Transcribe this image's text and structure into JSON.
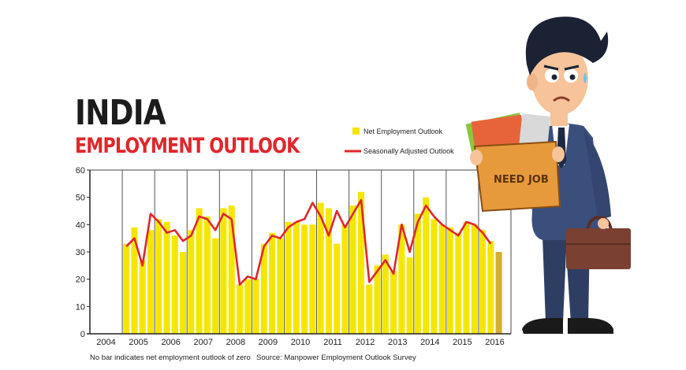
{
  "title": "INDIA",
  "subtitle": "EMPLOYMENT OUTLOOK",
  "footnote": "No bar indicates net employment outlook of zero",
  "source": "Source: Manpower Employment Outlook Survey",
  "illustration": {
    "box_label": "NEED JOB"
  },
  "colors": {
    "bar": "#f5e600",
    "bar_last": "#d4ae2f",
    "line": "#e0262b",
    "title": "#1c1c1c",
    "subtitle": "#e0262b"
  },
  "chart_data": {
    "type": "bar",
    "ylim": [
      0,
      60
    ],
    "yticks": [
      0,
      10,
      20,
      30,
      40,
      50,
      60
    ],
    "xlim": [
      2004,
      2017
    ],
    "xticks": [
      "2004",
      "2005",
      "2006",
      "2007",
      "2008",
      "2009",
      "2010",
      "2011",
      "2012",
      "2013",
      "2014",
      "2015",
      "2016"
    ],
    "grid": "vertical lines at year boundaries",
    "legend_position": "top-right",
    "series": [
      {
        "name": "Net Employment Outlook",
        "kind": "bar",
        "x": [
          2005.0,
          2005.25,
          2005.5,
          2005.75,
          2006.0,
          2006.25,
          2006.5,
          2006.75,
          2007.0,
          2007.25,
          2007.5,
          2007.75,
          2008.0,
          2008.25,
          2008.5,
          2008.75,
          2009.0,
          2009.25,
          2009.5,
          2009.75,
          2010.0,
          2010.25,
          2010.5,
          2010.75,
          2011.0,
          2011.25,
          2011.5,
          2011.75,
          2012.0,
          2012.25,
          2012.5,
          2012.75,
          2013.0,
          2013.25,
          2013.5,
          2013.75,
          2014.0,
          2014.25,
          2014.5,
          2014.75,
          2015.0,
          2015.25,
          2015.5,
          2015.75,
          2016.0,
          2016.25,
          2016.5
        ],
        "values": [
          33,
          39,
          27,
          38,
          42,
          41,
          36,
          30,
          38,
          46,
          43,
          35,
          46,
          47,
          18,
          20,
          20,
          33,
          37,
          35,
          41,
          41,
          40,
          40,
          48,
          46,
          33,
          40,
          47,
          52,
          18,
          25,
          29,
          23,
          40,
          28,
          44,
          50,
          42,
          40,
          39,
          37,
          41,
          40,
          38,
          34,
          30
        ]
      },
      {
        "name": "Seasonally Adjusted Outlook",
        "kind": "line",
        "x": [
          2005.0,
          2005.25,
          2005.5,
          2005.75,
          2006.0,
          2006.25,
          2006.5,
          2006.75,
          2007.0,
          2007.25,
          2007.5,
          2007.75,
          2008.0,
          2008.25,
          2008.5,
          2008.75,
          2009.0,
          2009.25,
          2009.5,
          2009.75,
          2010.0,
          2010.25,
          2010.5,
          2010.75,
          2011.0,
          2011.25,
          2011.5,
          2011.75,
          2012.0,
          2012.25,
          2012.5,
          2012.75,
          2013.0,
          2013.25,
          2013.5,
          2013.75,
          2014.0,
          2014.25,
          2014.5,
          2014.75,
          2015.0,
          2015.25,
          2015.5,
          2015.75,
          2016.0,
          2016.25
        ],
        "values": [
          32,
          35,
          25,
          44,
          41,
          37,
          38,
          34,
          36,
          43,
          42,
          38,
          44,
          42,
          18,
          21,
          20,
          32,
          36,
          35,
          39,
          41,
          42,
          48,
          43,
          36,
          45,
          39,
          44,
          49,
          19,
          23,
          27,
          22,
          40,
          30,
          41,
          47,
          43,
          40,
          38,
          36,
          41,
          40,
          37,
          33
        ]
      }
    ]
  }
}
